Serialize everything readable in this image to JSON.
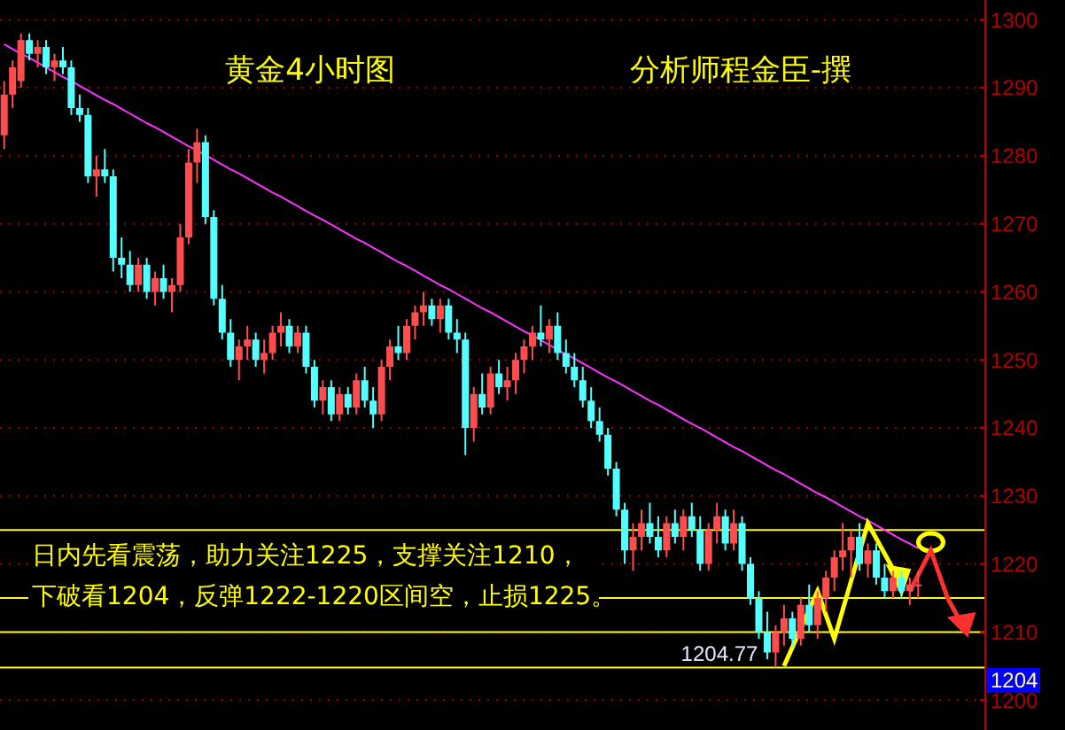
{
  "chart_data": {
    "type": "candlestick",
    "title": "黄金4小时图",
    "subtitle": "分析师程金臣-撰",
    "categories": [
      null,
      null,
      null,
      null,
      null,
      null,
      null,
      null,
      null,
      null,
      null,
      null,
      null,
      null,
      null,
      null,
      null,
      null,
      null,
      null,
      null,
      null,
      null,
      null,
      null,
      null,
      null,
      null,
      null,
      null,
      null,
      null,
      null,
      null,
      null,
      null,
      null,
      null,
      null,
      null,
      null,
      null,
      null,
      null,
      null,
      null,
      null,
      null,
      null,
      null,
      null,
      null,
      null,
      null,
      null,
      null,
      null,
      null,
      null,
      null,
      null,
      null,
      null,
      null,
      null,
      null,
      null,
      null,
      null,
      null,
      null,
      null,
      null,
      null,
      null,
      null,
      null,
      null,
      null,
      null,
      null,
      null,
      null,
      null,
      null,
      null,
      null,
      null,
      null,
      null,
      null,
      null,
      null,
      null,
      null,
      null,
      null,
      null,
      null,
      null,
      null,
      null,
      null,
      null,
      null,
      null,
      null,
      null,
      null,
      null
    ],
    "ohlc": [
      [
        1283,
        1291,
        1281,
        1289
      ],
      [
        1289,
        1294,
        1287,
        1293
      ],
      [
        1291,
        1298,
        1290,
        1297
      ],
      [
        1297,
        1298,
        1294,
        1295
      ],
      [
        1295,
        1297,
        1293,
        1296
      ],
      [
        1296,
        1297,
        1292,
        1293
      ],
      [
        1293,
        1295,
        1291,
        1294
      ],
      [
        1294,
        1296,
        1292,
        1293
      ],
      [
        1293,
        1294,
        1286,
        1287
      ],
      [
        1287,
        1289,
        1285,
        1286
      ],
      [
        1286,
        1287,
        1276,
        1277
      ],
      [
        1277,
        1280,
        1274,
        1278
      ],
      [
        1278,
        1281,
        1276,
        1277
      ],
      [
        1277,
        1278,
        1263,
        1265
      ],
      [
        1265,
        1268,
        1262,
        1264
      ],
      [
        1264,
        1266,
        1260,
        1261
      ],
      [
        1261,
        1265,
        1260,
        1264
      ],
      [
        1264,
        1265,
        1259,
        1260
      ],
      [
        1260,
        1263,
        1258,
        1262
      ],
      [
        1262,
        1264,
        1259,
        1260
      ],
      [
        1260,
        1262,
        1257,
        1261
      ],
      [
        1261,
        1270,
        1260,
        1268
      ],
      [
        1268,
        1281,
        1267,
        1279
      ],
      [
        1279,
        1284,
        1276,
        1282
      ],
      [
        1282,
        1283,
        1270,
        1271
      ],
      [
        1271,
        1272,
        1258,
        1259
      ],
      [
        1259,
        1261,
        1253,
        1254
      ],
      [
        1254,
        1256,
        1249,
        1250
      ],
      [
        1250,
        1253,
        1247,
        1252
      ],
      [
        1252,
        1255,
        1250,
        1253
      ],
      [
        1253,
        1254,
        1249,
        1250
      ],
      [
        1250,
        1253,
        1248,
        1251
      ],
      [
        1251,
        1255,
        1250,
        1254
      ],
      [
        1254,
        1257,
        1252,
        1255
      ],
      [
        1255,
        1256,
        1251,
        1252
      ],
      [
        1252,
        1255,
        1251,
        1254
      ],
      [
        1254,
        1255,
        1248,
        1249
      ],
      [
        1249,
        1250,
        1243,
        1244
      ],
      [
        1244,
        1247,
        1242,
        1246
      ],
      [
        1246,
        1247,
        1241,
        1242
      ],
      [
        1242,
        1246,
        1241,
        1245
      ],
      [
        1245,
        1246,
        1242,
        1243
      ],
      [
        1243,
        1248,
        1242,
        1247
      ],
      [
        1247,
        1249,
        1243,
        1244
      ],
      [
        1244,
        1246,
        1240,
        1242
      ],
      [
        1242,
        1250,
        1241,
        1249
      ],
      [
        1249,
        1253,
        1247,
        1252
      ],
      [
        1252,
        1255,
        1250,
        1251
      ],
      [
        1251,
        1256,
        1250,
        1255
      ],
      [
        1255,
        1258,
        1253,
        1257
      ],
      [
        1257,
        1260,
        1255,
        1258
      ],
      [
        1258,
        1259,
        1255,
        1256
      ],
      [
        1256,
        1259,
        1254,
        1258
      ],
      [
        1258,
        1259,
        1253,
        1254
      ],
      [
        1254,
        1256,
        1251,
        1253
      ],
      [
        1253,
        1254,
        1236,
        1240
      ],
      [
        1240,
        1246,
        1238,
        1245
      ],
      [
        1245,
        1248,
        1242,
        1243
      ],
      [
        1243,
        1249,
        1242,
        1248
      ],
      [
        1248,
        1250,
        1245,
        1246
      ],
      [
        1246,
        1249,
        1244,
        1247
      ],
      [
        1247,
        1251,
        1245,
        1250
      ],
      [
        1250,
        1253,
        1248,
        1252
      ],
      [
        1252,
        1255,
        1250,
        1254
      ],
      [
        1254,
        1258,
        1252,
        1253
      ],
      [
        1253,
        1256,
        1251,
        1255
      ],
      [
        1255,
        1257,
        1250,
        1251
      ],
      [
        1251,
        1253,
        1248,
        1249
      ],
      [
        1249,
        1251,
        1246,
        1247
      ],
      [
        1247,
        1249,
        1243,
        1244
      ],
      [
        1244,
        1246,
        1240,
        1241
      ],
      [
        1241,
        1243,
        1238,
        1239
      ],
      [
        1239,
        1240,
        1233,
        1234
      ],
      [
        1234,
        1235,
        1227,
        1228
      ],
      [
        1228,
        1229,
        1220,
        1222
      ],
      [
        1222,
        1226,
        1219,
        1224
      ],
      [
        1224,
        1228,
        1222,
        1226
      ],
      [
        1226,
        1229,
        1223,
        1224
      ],
      [
        1224,
        1227,
        1221,
        1222
      ],
      [
        1222,
        1227,
        1221,
        1226
      ],
      [
        1226,
        1228,
        1223,
        1224
      ],
      [
        1224,
        1228,
        1222,
        1227
      ],
      [
        1227,
        1229,
        1224,
        1225
      ],
      [
        1225,
        1227,
        1219,
        1220
      ],
      [
        1220,
        1226,
        1219,
        1225
      ],
      [
        1225,
        1229,
        1223,
        1227
      ],
      [
        1227,
        1228,
        1222,
        1223
      ],
      [
        1223,
        1228,
        1222,
        1226
      ],
      [
        1226,
        1227,
        1219,
        1220
      ],
      [
        1220,
        1221,
        1214,
        1215
      ],
      [
        1215,
        1216,
        1209,
        1210
      ],
      [
        1210,
        1213,
        1206,
        1207
      ],
      [
        1207,
        1211,
        1204.77,
        1210
      ],
      [
        1210,
        1214,
        1208,
        1212
      ],
      [
        1212,
        1213,
        1208,
        1209
      ],
      [
        1209,
        1215,
        1208,
        1214
      ],
      [
        1214,
        1217,
        1210,
        1211
      ],
      [
        1211,
        1216,
        1209,
        1215
      ],
      [
        1215,
        1219,
        1213,
        1218
      ],
      [
        1218,
        1222,
        1216,
        1221
      ],
      [
        1221,
        1226,
        1219,
        1222
      ],
      [
        1222,
        1225,
        1218,
        1224
      ],
      [
        1224,
        1226,
        1219,
        1220
      ],
      [
        1220,
        1223,
        1218,
        1222
      ],
      [
        1222,
        1223,
        1217,
        1218
      ],
      [
        1218,
        1220,
        1215,
        1216
      ],
      [
        1216,
        1219,
        1215,
        1218
      ],
      [
        1218,
        1219,
        1215,
        1216
      ],
      [
        1216,
        1218,
        1214,
        1217
      ],
      [
        1217,
        1219,
        1215,
        1217
      ]
    ],
    "series": [
      {
        "type": "line",
        "color": "#ff33ff",
        "values": [
          1296.4,
          1295.7,
          1295.0,
          1294.4,
          1293.7,
          1293.0,
          1292.3,
          1291.6,
          1291.0,
          1290.3,
          1289.6,
          1288.9,
          1288.2,
          1287.6,
          1286.9,
          1286.2,
          1285.5,
          1284.8,
          1284.2,
          1283.5,
          1282.8,
          1282.1,
          1281.4,
          1280.8,
          1280.1,
          1279.4,
          1278.7,
          1278.0,
          1277.4,
          1276.7,
          1276.0,
          1275.3,
          1274.6,
          1274.0,
          1273.3,
          1272.6,
          1271.9,
          1271.2,
          1270.6,
          1269.9,
          1269.2,
          1268.5,
          1267.8,
          1267.2,
          1266.5,
          1265.8,
          1265.1,
          1264.4,
          1263.8,
          1263.1,
          1262.4,
          1261.7,
          1261.0,
          1260.4,
          1259.7,
          1259.0,
          1258.3,
          1257.6,
          1257.0,
          1256.3,
          1255.6,
          1254.9,
          1254.2,
          1253.6,
          1252.9,
          1252.2,
          1251.5,
          1250.8,
          1250.2,
          1249.5,
          1248.8,
          1248.1,
          1247.4,
          1246.8,
          1246.1,
          1245.4,
          1244.7,
          1244.0,
          1243.4,
          1242.7,
          1242.0,
          1241.3,
          1240.6,
          1240.0,
          1239.3,
          1238.6,
          1237.9,
          1237.2,
          1236.6,
          1235.9,
          1235.2,
          1234.5,
          1233.8,
          1233.2,
          1232.5,
          1231.8,
          1231.1,
          1230.4,
          1229.8,
          1229.1,
          1228.4,
          1227.7,
          1227.0,
          1226.4,
          1225.7,
          1225.0,
          1224.3,
          1223.6,
          1223.0,
          1222.3
        ]
      }
    ],
    "ylim": [
      1195.6,
      1302.9
    ],
    "yticks": [
      1200,
      1210,
      1220,
      1230,
      1240,
      1250,
      1260,
      1270,
      1280,
      1290,
      1300
    ],
    "grid": "y",
    "ref_lines": [
      {
        "axis": "y",
        "value": 1225,
        "color": "#ffff00"
      },
      {
        "axis": "y",
        "value": 1215,
        "color": "#ffff00"
      },
      {
        "axis": "y",
        "value": 1210,
        "color": "#ffff00"
      },
      {
        "axis": "y",
        "value": 1204.77,
        "color": "#ffff00"
      }
    ],
    "annotations": [
      "日内先看震荡，助力关注1225，支撑关注1210，",
      "下破看1204，反弹1222-1220区间空，止损1225。",
      {
        "text": "1204.77",
        "y": 1204.77
      },
      "1204"
    ]
  }
}
